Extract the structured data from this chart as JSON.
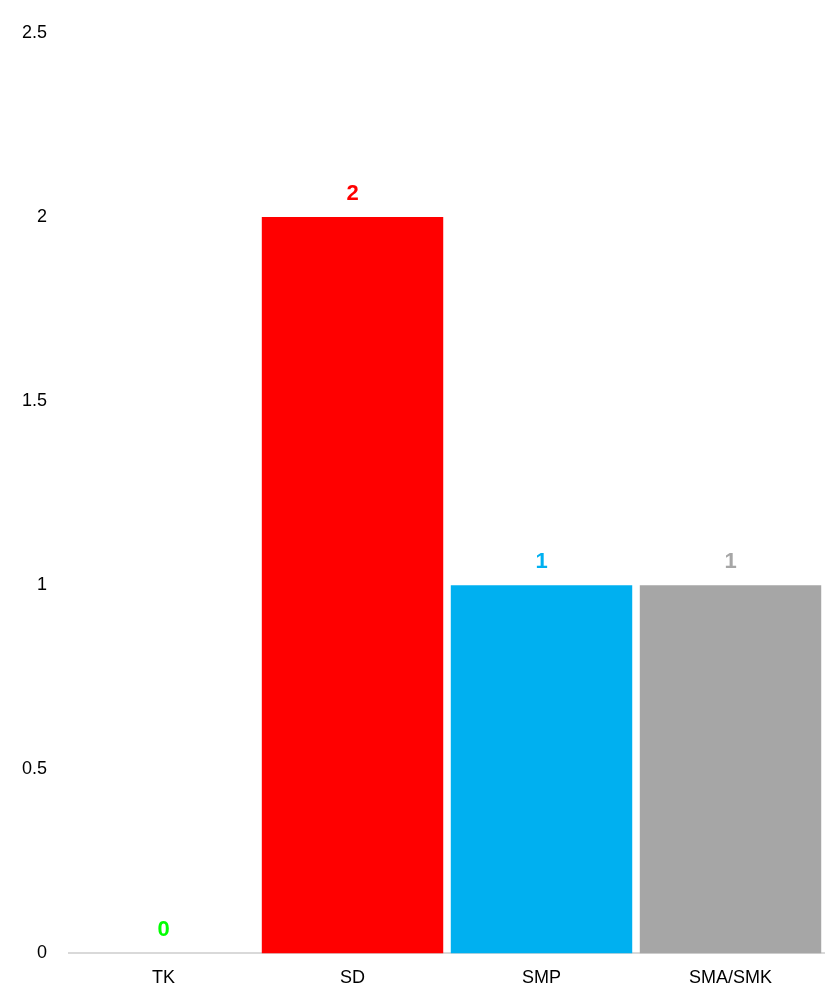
{
  "chart_data": {
    "type": "bar",
    "categories": [
      "TK",
      "SD",
      "SMP",
      "SMA/SMK"
    ],
    "values": [
      0,
      2,
      1,
      1
    ],
    "colors": [
      "#00ff00",
      "#ff0000",
      "#00b0f0",
      "#a6a6a6"
    ],
    "ylim": [
      0,
      2.5
    ],
    "yticks": [
      0,
      0.5,
      1,
      1.5,
      2,
      2.5
    ],
    "grid": false,
    "data_labels": true
  }
}
